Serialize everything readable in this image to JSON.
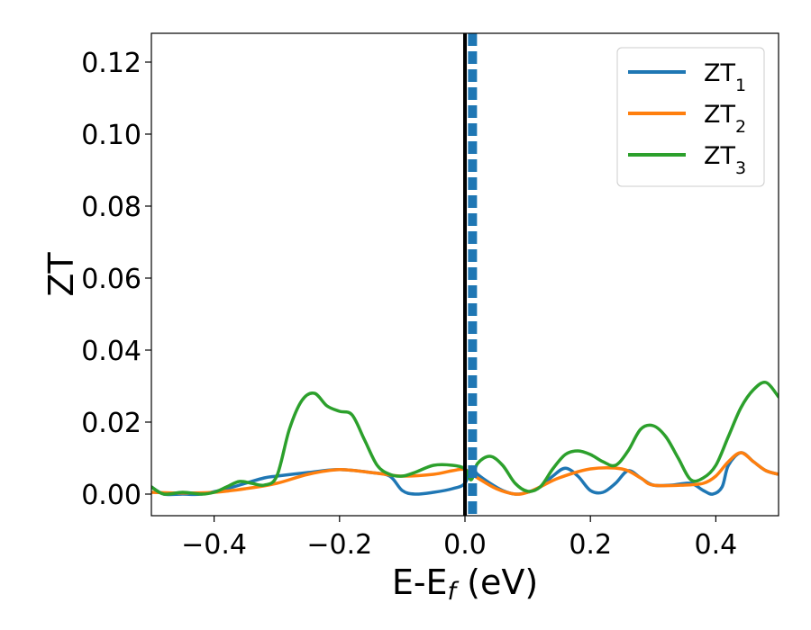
{
  "chart_data": {
    "type": "line",
    "title": "",
    "xlabel": {
      "base": "E-E",
      "subscript": "f",
      "suffix": " (eV)"
    },
    "ylabel": "ZT",
    "xlim": [
      -0.5,
      0.5
    ],
    "ylim": [
      -0.006,
      0.128
    ],
    "xticks": [
      -0.4,
      -0.2,
      0.0,
      0.2,
      0.4
    ],
    "xtick_labels": [
      "−0.4",
      "−0.2",
      "0.0",
      "0.2",
      "0.4"
    ],
    "yticks": [
      0.0,
      0.02,
      0.04,
      0.06,
      0.08,
      0.1,
      0.12
    ],
    "ytick_labels": [
      "0.00",
      "0.02",
      "0.04",
      "0.06",
      "0.08",
      "0.10",
      "0.12"
    ],
    "grid": false,
    "legend_position": "top-right",
    "vlines": [
      {
        "x": 0.0,
        "style": "solid",
        "color": "#000000"
      },
      {
        "x": 0.012,
        "style": "dashed",
        "color": "#1f77b4"
      }
    ],
    "series": [
      {
        "name": {
          "base": "ZT",
          "subscript": "1"
        },
        "color": "#1f77b4",
        "points": [
          [
            -0.5,
            0.002
          ],
          [
            -0.48,
            0.0
          ],
          [
            -0.45,
            0.0
          ],
          [
            -0.42,
            0.0
          ],
          [
            -0.38,
            0.0015
          ],
          [
            -0.35,
            0.003
          ],
          [
            -0.32,
            0.0045
          ],
          [
            -0.3,
            0.005
          ],
          [
            -0.25,
            0.006
          ],
          [
            -0.2,
            0.0068
          ],
          [
            -0.15,
            0.006
          ],
          [
            -0.12,
            0.005
          ],
          [
            -0.1,
            0.001
          ],
          [
            -0.08,
            0.0
          ],
          [
            -0.05,
            0.0005
          ],
          [
            -0.02,
            0.0015
          ],
          [
            0.0,
            0.003
          ],
          [
            0.01,
            0.0075
          ],
          [
            0.02,
            0.0055
          ],
          [
            0.04,
            0.003
          ],
          [
            0.06,
            0.001
          ],
          [
            0.08,
            0.0
          ],
          [
            0.1,
            0.0005
          ],
          [
            0.12,
            0.002
          ],
          [
            0.14,
            0.005
          ],
          [
            0.16,
            0.0072
          ],
          [
            0.18,
            0.005
          ],
          [
            0.2,
            0.001
          ],
          [
            0.22,
            0.0005
          ],
          [
            0.24,
            0.003
          ],
          [
            0.26,
            0.0065
          ],
          [
            0.28,
            0.0045
          ],
          [
            0.3,
            0.0025
          ],
          [
            0.33,
            0.0025
          ],
          [
            0.36,
            0.003
          ],
          [
            0.38,
            0.001
          ],
          [
            0.395,
            0.0
          ],
          [
            0.41,
            0.002
          ],
          [
            0.42,
            0.008
          ],
          [
            0.44,
            0.0115
          ],
          [
            0.46,
            0.009
          ],
          [
            0.48,
            0.0065
          ],
          [
            0.5,
            0.0055
          ]
        ]
      },
      {
        "name": {
          "base": "ZT",
          "subscript": "2"
        },
        "color": "#ff7f0e",
        "points": [
          [
            -0.5,
            0.0005
          ],
          [
            -0.45,
            0.0003
          ],
          [
            -0.4,
            0.0005
          ],
          [
            -0.35,
            0.0015
          ],
          [
            -0.3,
            0.003
          ],
          [
            -0.25,
            0.0055
          ],
          [
            -0.2,
            0.0068
          ],
          [
            -0.15,
            0.006
          ],
          [
            -0.1,
            0.005
          ],
          [
            -0.05,
            0.0055
          ],
          [
            -0.02,
            0.0065
          ],
          [
            0.0,
            0.0068
          ],
          [
            0.02,
            0.0045
          ],
          [
            0.05,
            0.0015
          ],
          [
            0.08,
            0.0
          ],
          [
            0.1,
            0.0005
          ],
          [
            0.12,
            0.002
          ],
          [
            0.15,
            0.0045
          ],
          [
            0.2,
            0.007
          ],
          [
            0.25,
            0.007
          ],
          [
            0.28,
            0.0045
          ],
          [
            0.3,
            0.0025
          ],
          [
            0.35,
            0.0025
          ],
          [
            0.38,
            0.003
          ],
          [
            0.4,
            0.005
          ],
          [
            0.42,
            0.009
          ],
          [
            0.44,
            0.0115
          ],
          [
            0.46,
            0.009
          ],
          [
            0.48,
            0.0065
          ],
          [
            0.5,
            0.0055
          ]
        ]
      },
      {
        "name": {
          "base": "ZT",
          "subscript": "3"
        },
        "color": "#2ca02c",
        "points": [
          [
            -0.5,
            0.002
          ],
          [
            -0.48,
            0.0
          ],
          [
            -0.45,
            0.0005
          ],
          [
            -0.42,
            0.0
          ],
          [
            -0.4,
            0.0005
          ],
          [
            -0.38,
            0.002
          ],
          [
            -0.36,
            0.0035
          ],
          [
            -0.34,
            0.003
          ],
          [
            -0.32,
            0.0025
          ],
          [
            -0.3,
            0.005
          ],
          [
            -0.28,
            0.018
          ],
          [
            -0.26,
            0.026
          ],
          [
            -0.24,
            0.028
          ],
          [
            -0.22,
            0.0245
          ],
          [
            -0.2,
            0.023
          ],
          [
            -0.18,
            0.022
          ],
          [
            -0.16,
            0.015
          ],
          [
            -0.14,
            0.008
          ],
          [
            -0.12,
            0.0055
          ],
          [
            -0.1,
            0.005
          ],
          [
            -0.08,
            0.006
          ],
          [
            -0.05,
            0.008
          ],
          [
            -0.02,
            0.008
          ],
          [
            0.0,
            0.007
          ],
          [
            0.01,
            0.004
          ],
          [
            0.02,
            0.0085
          ],
          [
            0.04,
            0.0105
          ],
          [
            0.06,
            0.008
          ],
          [
            0.08,
            0.003
          ],
          [
            0.1,
            0.0008
          ],
          [
            0.12,
            0.002
          ],
          [
            0.14,
            0.007
          ],
          [
            0.16,
            0.011
          ],
          [
            0.18,
            0.012
          ],
          [
            0.2,
            0.011
          ],
          [
            0.22,
            0.009
          ],
          [
            0.24,
            0.008
          ],
          [
            0.26,
            0.012
          ],
          [
            0.28,
            0.018
          ],
          [
            0.3,
            0.019
          ],
          [
            0.32,
            0.016
          ],
          [
            0.34,
            0.01
          ],
          [
            0.36,
            0.004
          ],
          [
            0.38,
            0.0045
          ],
          [
            0.4,
            0.008
          ],
          [
            0.42,
            0.016
          ],
          [
            0.44,
            0.024
          ],
          [
            0.46,
            0.029
          ],
          [
            0.48,
            0.031
          ],
          [
            0.5,
            0.027
          ]
        ]
      }
    ]
  }
}
